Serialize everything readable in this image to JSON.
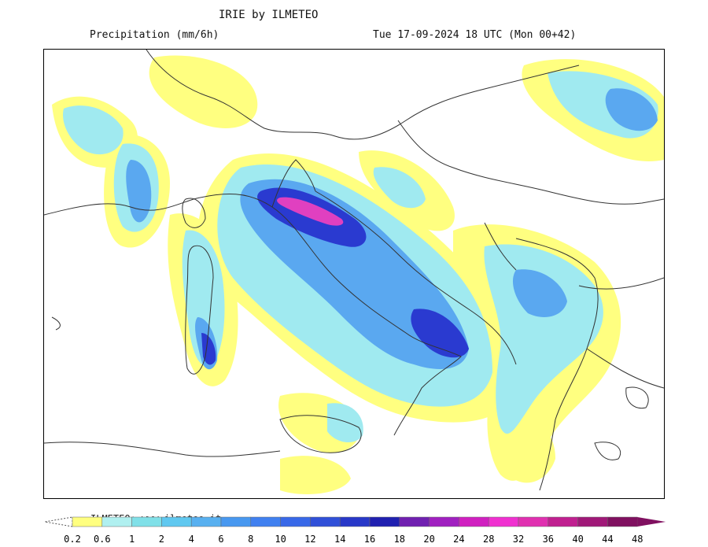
{
  "header": {
    "title": "IRIE by ILMETEO",
    "subtitle": "Precipitation (mm/6h)",
    "timestamp": "Tue 17-09-2024 18 UTC (Mon 00+42)"
  },
  "watermark": "ILMETEO: www.ilmeteo.it",
  "legend": {
    "ticks": [
      "0.2",
      "0.6",
      "1",
      "2",
      "4",
      "6",
      "8",
      "10",
      "12",
      "14",
      "16",
      "18",
      "20",
      "24",
      "28",
      "32",
      "36",
      "40",
      "44",
      "48"
    ],
    "colors": [
      "#ffff80",
      "#b0f0f0",
      "#80e0e8",
      "#60c8f0",
      "#58b0f0",
      "#4898f0",
      "#4080f0",
      "#3868e8",
      "#3050d8",
      "#2838c8",
      "#2020b0",
      "#7020b0",
      "#a020c0",
      "#d020c0",
      "#f030d0",
      "#e030b0",
      "#c02090",
      "#a01878",
      "#801060"
    ]
  },
  "colors": {
    "background": "#ffffff",
    "border": "#000000",
    "coastline": "#333333"
  }
}
